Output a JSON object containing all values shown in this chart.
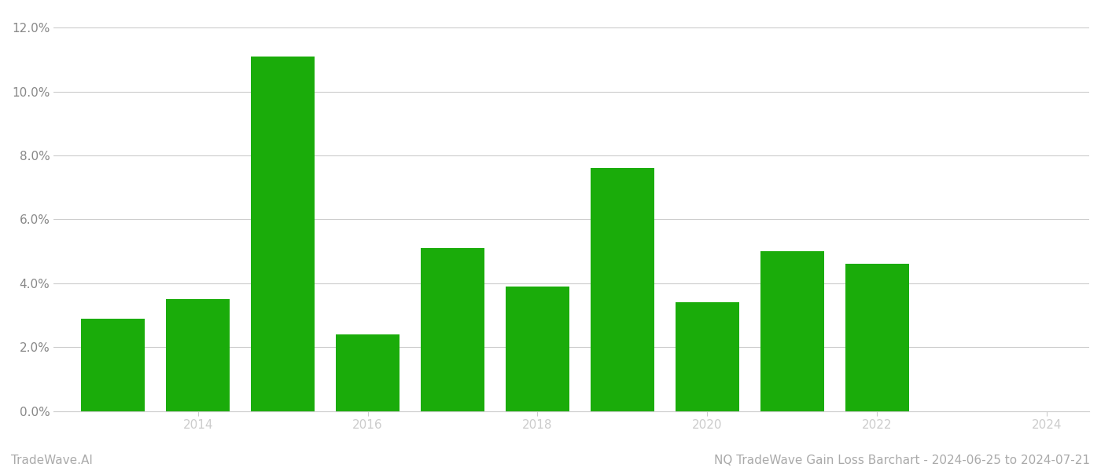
{
  "years": [
    2013,
    2014,
    2015,
    2016,
    2017,
    2018,
    2019,
    2020,
    2021,
    2022,
    2023
  ],
  "values": [
    0.029,
    0.035,
    0.111,
    0.024,
    0.051,
    0.039,
    0.076,
    0.034,
    0.05,
    0.046,
    0.0
  ],
  "bar_color": "#1aac0a",
  "background_color": "#ffffff",
  "grid_color": "#cccccc",
  "tick_label_color": "#888888",
  "ylim": [
    0,
    0.125
  ],
  "yticks": [
    0.0,
    0.02,
    0.04,
    0.06,
    0.08,
    0.1,
    0.12
  ],
  "xtick_positions": [
    2014,
    2016,
    2018,
    2020,
    2022,
    2024
  ],
  "xtick_labels": [
    "2014",
    "2016",
    "2018",
    "2020",
    "2022",
    "2024"
  ],
  "xlim": [
    2012.3,
    2024.5
  ],
  "footer_left": "TradeWave.AI",
  "footer_right": "NQ TradeWave Gain Loss Barchart - 2024-06-25 to 2024-07-21",
  "footer_color": "#aaaaaa",
  "bar_width": 0.75,
  "figsize": [
    14.0,
    6.0
  ],
  "dpi": 100
}
